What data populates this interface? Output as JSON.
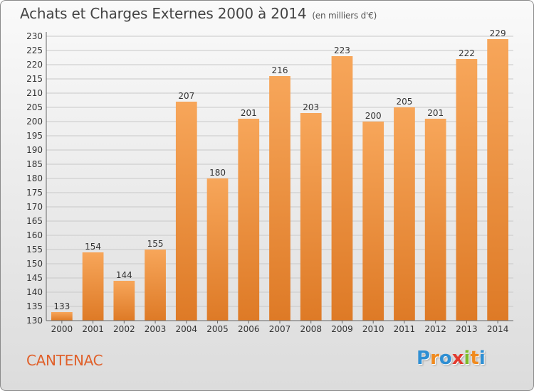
{
  "header": {
    "title": "Achats et Charges Externes 2000 à 2014",
    "subtitle": "(en milliers d'€)"
  },
  "footer": {
    "place": "CANTENAC",
    "logo_letters": [
      "P",
      "r",
      "o",
      "x",
      "i",
      "t",
      "i"
    ],
    "logo_colors": [
      "#2f8fd3",
      "#f08a1e",
      "#2f8fd3",
      "#e23a2e",
      "#7cbb2a",
      "#f08a1e",
      "#2f8fd3"
    ]
  },
  "colors": {
    "bar_light": "#f7a65a",
    "bar_dark": "#de7a26",
    "grid": "#c8c8c8"
  },
  "chart_data": {
    "type": "bar",
    "title": "Achats et Charges Externes 2000 à 2014",
    "subtitle": "(en milliers d'€)",
    "xlabel": "",
    "ylabel": "",
    "categories": [
      "2000",
      "2001",
      "2002",
      "2003",
      "2004",
      "2005",
      "2006",
      "2007",
      "2008",
      "2009",
      "2010",
      "2011",
      "2012",
      "2013",
      "2014"
    ],
    "values": [
      133,
      154,
      144,
      155,
      207,
      180,
      201,
      216,
      203,
      223,
      200,
      205,
      201,
      222,
      229
    ],
    "ylim": [
      130,
      230
    ],
    "ytick_step": 5,
    "grid": true
  }
}
